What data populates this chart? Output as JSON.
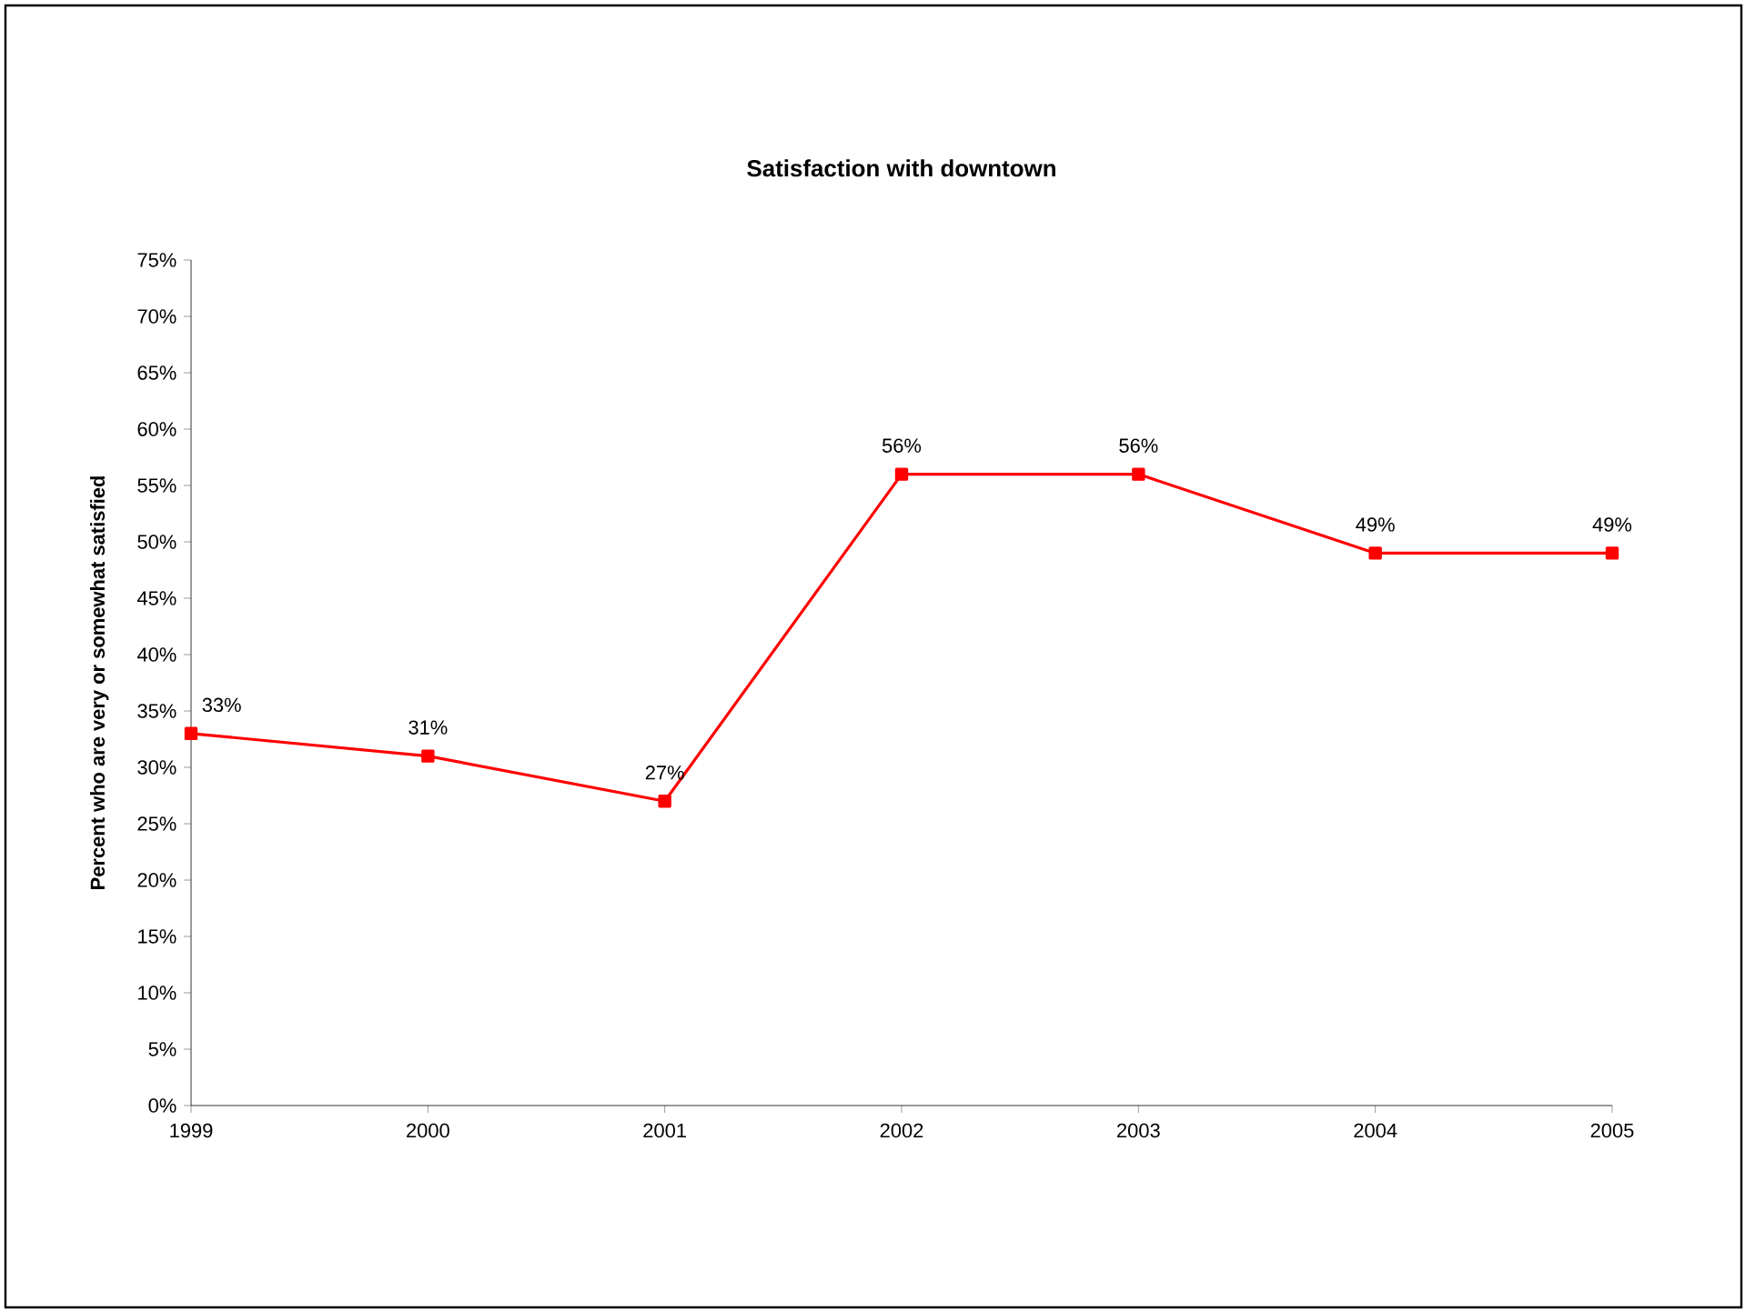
{
  "chart_data": {
    "type": "line",
    "title": "Satisfaction with downtown",
    "ylabel": "Percent who are very or somewhat satisfied",
    "x": [
      1999,
      2000,
      2001,
      2002,
      2003,
      2004,
      2005
    ],
    "series": [
      {
        "color": "#ff0000",
        "values": [
          33,
          31,
          27,
          56,
          56,
          49,
          49
        ],
        "value_labels": [
          "33%",
          "31%",
          "27%",
          "56%",
          "56%",
          "49%",
          "49%"
        ]
      }
    ],
    "xlim": [
      1999,
      2005
    ],
    "xticks": [
      1999,
      2000,
      2001,
      2002,
      2003,
      2004,
      2005
    ],
    "ylim": [
      0,
      75
    ],
    "yticks": [
      {
        "value": 0,
        "label": "0%"
      },
      {
        "value": 5,
        "label": "5%"
      },
      {
        "value": 10,
        "label": "10%"
      },
      {
        "value": 15,
        "label": "15%"
      },
      {
        "value": 20,
        "label": "20%"
      },
      {
        "value": 25,
        "label": "25%"
      },
      {
        "value": 30,
        "label": "30%"
      },
      {
        "value": 35,
        "label": "35%"
      },
      {
        "value": 40,
        "label": "40%"
      },
      {
        "value": 45,
        "label": "45%"
      },
      {
        "value": 50,
        "label": "50%"
      },
      {
        "value": 55,
        "label": "55%"
      },
      {
        "value": 60,
        "label": "60%"
      },
      {
        "value": 65,
        "label": "65%"
      },
      {
        "value": 70,
        "label": "70%"
      },
      {
        "value": 75,
        "label": "75%"
      }
    ],
    "grid": false,
    "marker": "square",
    "line_style": "solid"
  }
}
